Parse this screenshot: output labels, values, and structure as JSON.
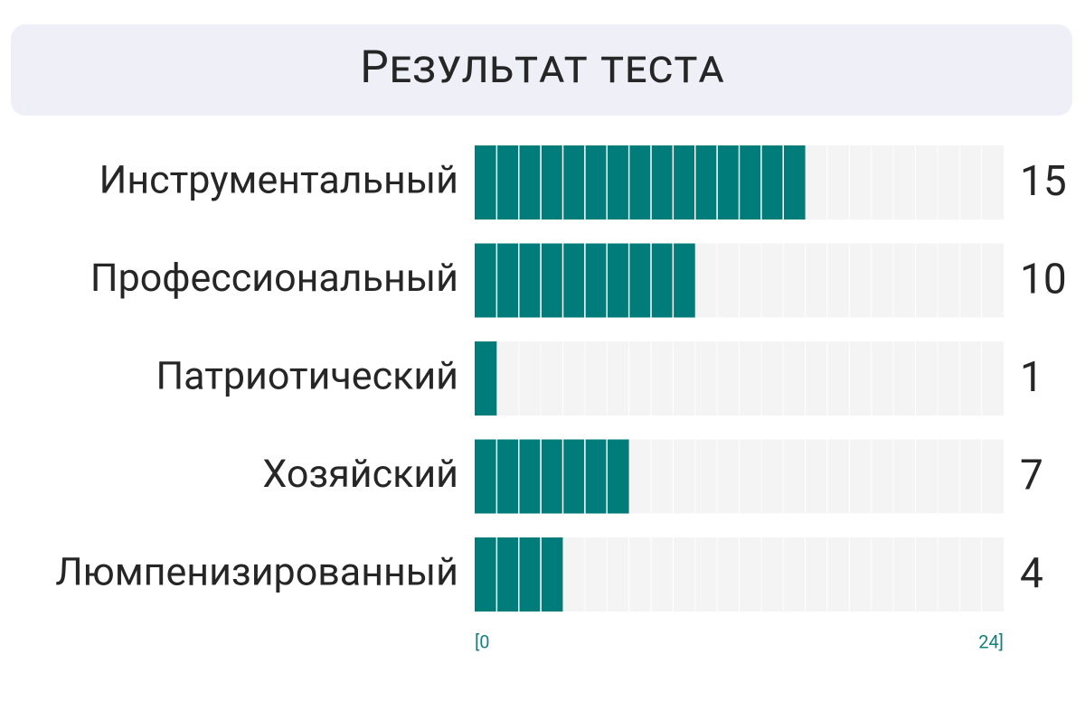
{
  "chart_data": {
    "type": "bar",
    "orientation": "horizontal",
    "title": "Результат теста",
    "categories": [
      "Инструментальный",
      "Профессиональный",
      "Патриотический",
      "Хозяйский",
      "Люмпенизированный"
    ],
    "values": [
      15,
      10,
      1,
      7,
      4
    ],
    "color": "#007c7a",
    "xlim": [
      0,
      24
    ],
    "xticks": [
      {
        "value": 0,
        "label": "[0"
      },
      {
        "value": 24,
        "label": "24]"
      }
    ]
  }
}
